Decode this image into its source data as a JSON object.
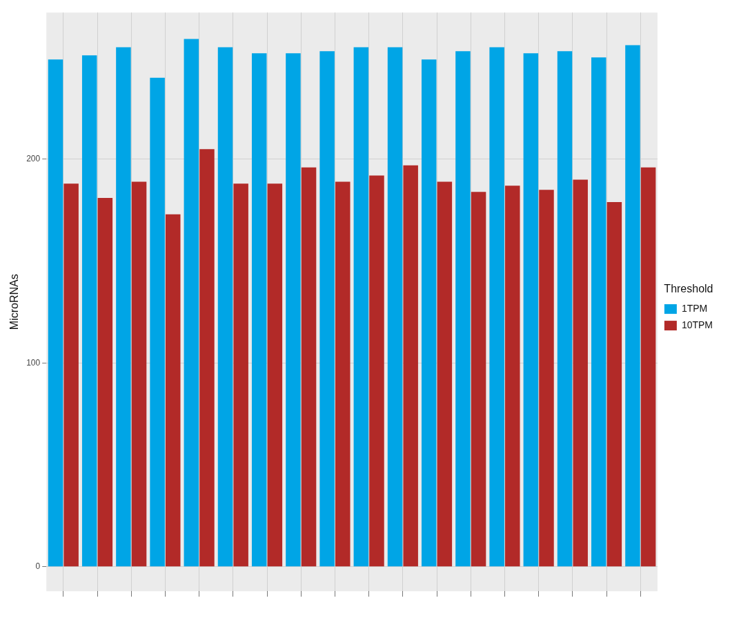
{
  "chart_data": {
    "type": "bar",
    "ylabel": "MicroRNAs",
    "legend_title": "Threshold",
    "legend": "right",
    "grid": true,
    "categories": [
      null,
      null,
      null,
      null,
      null,
      null,
      null,
      null,
      null,
      null,
      null,
      null,
      null,
      null,
      null,
      null,
      null,
      null
    ],
    "ylim": [
      -12,
      272
    ],
    "yticks": [
      0,
      100,
      200
    ],
    "series": [
      {
        "name": "1TPM",
        "color": "#00a5e6",
        "values": [
          249,
          251,
          255,
          240,
          259,
          255,
          252,
          252,
          253,
          255,
          255,
          249,
          253,
          255,
          252,
          253,
          250,
          256
        ]
      },
      {
        "name": "10TPM",
        "color": "#b22a28",
        "values": [
          188,
          181,
          189,
          173,
          205,
          188,
          188,
          196,
          189,
          192,
          197,
          189,
          184,
          187,
          185,
          190,
          179,
          196
        ]
      }
    ]
  }
}
